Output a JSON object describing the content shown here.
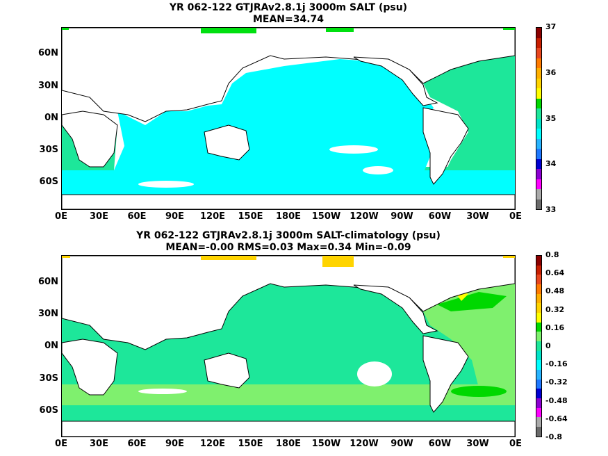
{
  "panels": [
    {
      "title": "YR 062-122 GTJRAv2.8.1j 3000m SALT (psu)",
      "subtitle": "MEAN=34.74",
      "colorbar_labels": [
        "37",
        "36",
        "35",
        "34",
        "33"
      ],
      "colorbar_colors": [
        "#8b0000",
        "#c81e00",
        "#e8461e",
        "#ff7b00",
        "#ffb000",
        "#ffd400",
        "#ffff00",
        "#00d800",
        "#1de79a",
        "#00e4c8",
        "#00ffff",
        "#28b4ff",
        "#1e78ff",
        "#0000d2",
        "#8c00d2",
        "#ff00ff",
        "#aaaaaa",
        "#6a6a6a"
      ]
    },
    {
      "title": "YR 062-122 GTJRAv2.8.1j 3000m SALT-climatology (psu)",
      "subtitle": "MEAN=-0.00   RMS=0.03   Max=0.34   Min=-0.09",
      "colorbar_labels": [
        "0.8",
        "0.64",
        "0.48",
        "0.32",
        "0.16",
        "0",
        "-0.16",
        "-0.32",
        "-0.48",
        "-0.64",
        "-0.8"
      ],
      "colorbar_colors": [
        "#8b0000",
        "#c81e00",
        "#e8461e",
        "#ff7b00",
        "#ffb000",
        "#ffd400",
        "#ffff00",
        "#00d800",
        "#7ff06e",
        "#1de79a",
        "#00e4c8",
        "#00ffff",
        "#28b4ff",
        "#1e78ff",
        "#0000d2",
        "#8c00d2",
        "#ff00ff",
        "#aaaaaa",
        "#6a6a6a"
      ]
    }
  ],
  "lat_labels": [
    "60N",
    "30N",
    "0N",
    "30S",
    "60S"
  ],
  "lon_labels": [
    "0E",
    "30E",
    "60E",
    "90E",
    "120E",
    "150E",
    "180E",
    "150W",
    "120W",
    "90W",
    "60W",
    "30W",
    "0E"
  ],
  "colors": {
    "panel1_field": "#00ffff",
    "panel1_atlantic": "#1de79a",
    "panel1_high": "#00e010",
    "panel2_field": "#1de79a",
    "panel2_pos": "#7ff06e",
    "panel2_high": "#00d800",
    "panel2_yellow": "#ffd400"
  }
}
